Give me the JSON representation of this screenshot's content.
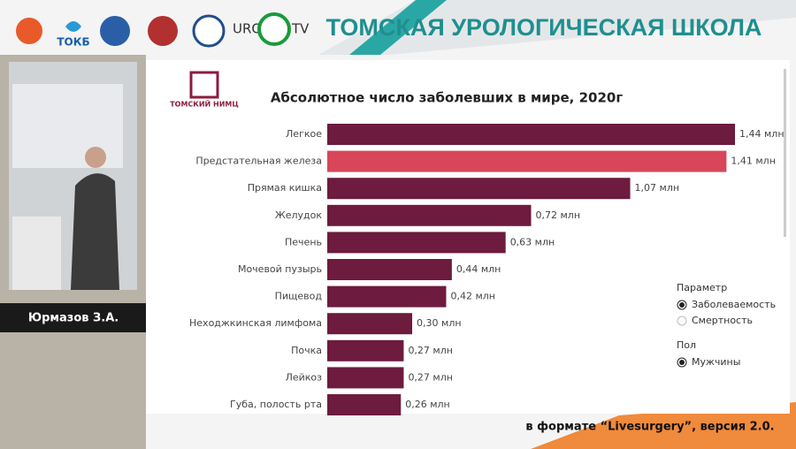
{
  "header": {
    "title": "ТОМСКАЯ УРОЛОГИЧЕСКАЯ ШКОЛА",
    "logo_tokb": "ТОКБ",
    "logo_uro": "URO",
    "logo_tv": "TV"
  },
  "speaker": {
    "name": "Юрмазов З.А."
  },
  "footer": {
    "text": "в формате “Livesurgery”, версия 2.0."
  },
  "logo": {
    "text": "ТОМСКИЙ НИМЦ"
  },
  "chart_data": {
    "type": "bar",
    "orientation": "horizontal",
    "title": "Абсолютное число заболевших в мире, 2020г",
    "categories": [
      "Легкое",
      "Предстательная железа",
      "Прямая кишка",
      "Желудок",
      "Печень",
      "Мочевой пузырь",
      "Пищевод",
      "Неходжкинская лимфома",
      "Почка",
      "Лейкоз",
      "Губа, полость рта"
    ],
    "values": [
      1.44,
      1.41,
      1.07,
      0.72,
      0.63,
      0.44,
      0.42,
      0.3,
      0.27,
      0.27,
      0.26
    ],
    "value_labels": [
      "1,44 млн",
      "1,41 млн",
      "1,07 млн",
      "0,72 млн",
      "0,63 млн",
      "0,44 млн",
      "0,42 млн",
      "0,30 млн",
      "0,27 млн",
      "0,27 млн",
      "0,26 млн"
    ],
    "colors": [
      "#6d1b3e",
      "#d8465a",
      "#6d1b3e",
      "#6d1b3e",
      "#6d1b3e",
      "#6d1b3e",
      "#6d1b3e",
      "#6d1b3e",
      "#6d1b3e",
      "#6d1b3e",
      "#6d1b3e"
    ],
    "filters": [
      {
        "title": "Параметр",
        "options": [
          "Заболеваемость",
          "Смертность"
        ],
        "selected": 0
      },
      {
        "title": "Пол",
        "options": [
          "Мужчины"
        ],
        "selected": 0
      }
    ]
  }
}
